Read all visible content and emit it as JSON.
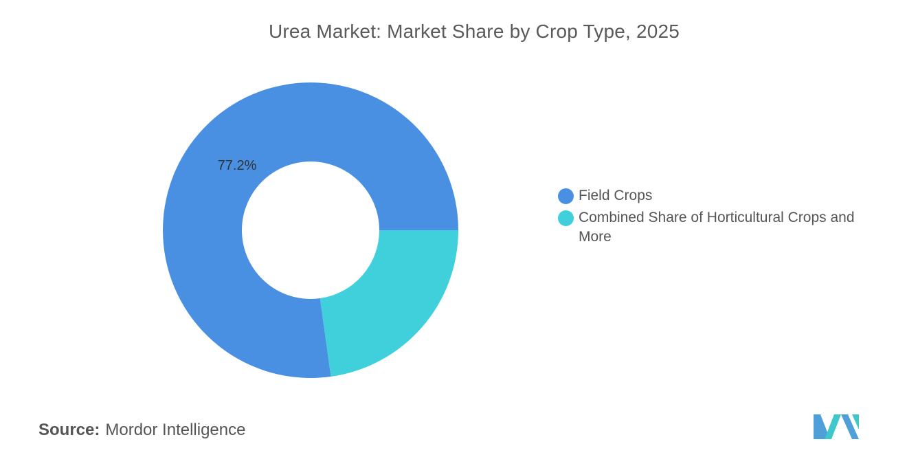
{
  "chart_data": {
    "type": "pie",
    "variant": "donut",
    "title": "Urea Market: Market Share by Crop Type, 2025",
    "slices": [
      {
        "name": "Field Crops",
        "value": 77.2,
        "label": "77.2%",
        "color": "#4a90e2"
      },
      {
        "name": "Combined Share of Horticultural Crops and More",
        "value": 22.8,
        "label": "",
        "color": "#40d0dc"
      }
    ],
    "legend_position": "right"
  },
  "source": {
    "label": "Source:",
    "text": "Mordor Intelligence"
  },
  "logo": {
    "colors": [
      "#4f9fd8",
      "#3fc7c9"
    ]
  }
}
